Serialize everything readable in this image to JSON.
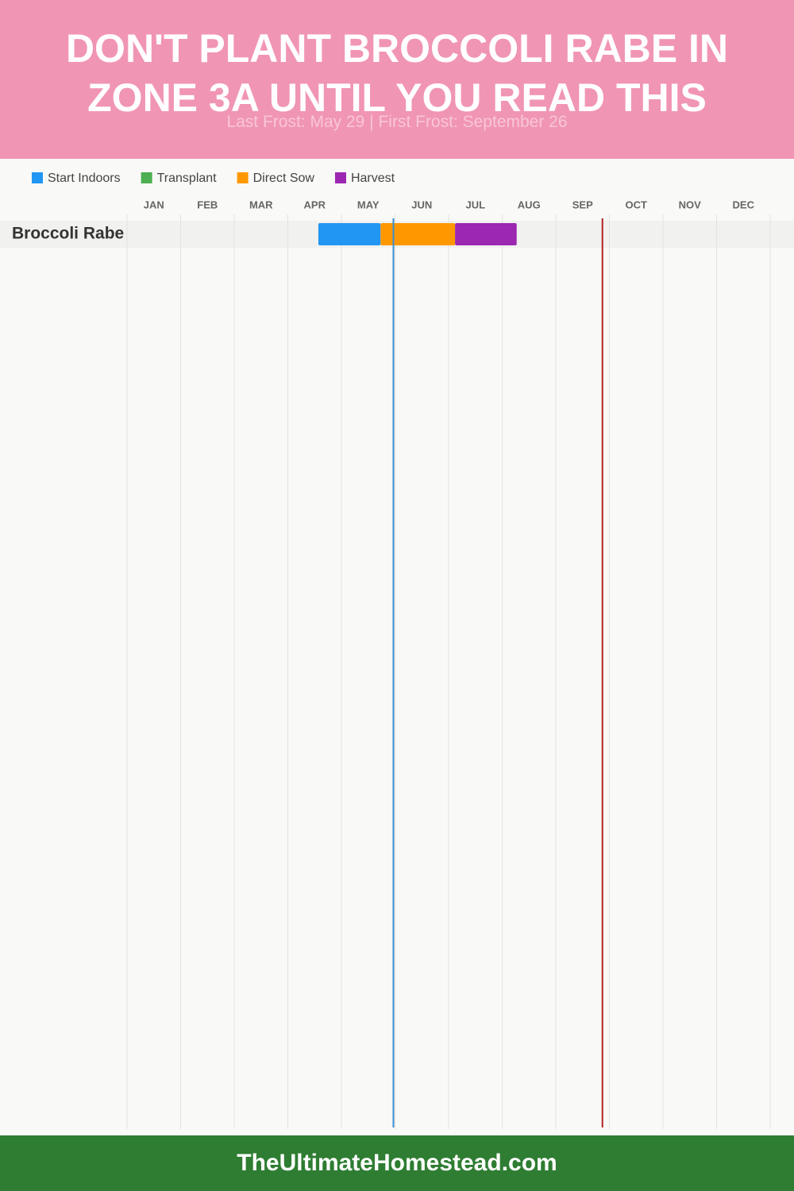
{
  "chart_data": {
    "type": "gantt",
    "title": "DON'T PLANT BROCCOLI RABE IN ZONE 3A UNTIL YOU READ THIS",
    "subtitle": "Last Frost: May 29 | First Frost: September 26",
    "footer": "TheUltimateHomestead.com",
    "categories": [
      "Broccoli Rabe"
    ],
    "xlim": [
      0,
      12
    ],
    "xticks": [
      {
        "value": 0.5,
        "label": "JAN"
      },
      {
        "value": 1.5,
        "label": "FEB"
      },
      {
        "value": 2.5,
        "label": "MAR"
      },
      {
        "value": 3.5,
        "label": "APR"
      },
      {
        "value": 4.5,
        "label": "MAY"
      },
      {
        "value": 5.5,
        "label": "JUN"
      },
      {
        "value": 6.5,
        "label": "JUL"
      },
      {
        "value": 7.5,
        "label": "AUG"
      },
      {
        "value": 8.5,
        "label": "SEP"
      },
      {
        "value": 9.5,
        "label": "OCT"
      },
      {
        "value": 10.5,
        "label": "NOV"
      },
      {
        "value": 11.5,
        "label": "DEC"
      }
    ],
    "series": [
      {
        "name": "Start Indoors",
        "color": "#2196f3",
        "values": [
          [
            3.57,
            4.73
          ]
        ]
      },
      {
        "name": "Transplant",
        "color": "#4caf50",
        "values": [
          null
        ]
      },
      {
        "name": "Direct Sow",
        "color": "#ff9800",
        "values": [
          [
            4.73,
            6.12
          ]
        ]
      },
      {
        "name": "Harvest",
        "color": "#9c27b0",
        "values": [
          [
            6.12,
            7.27
          ]
        ]
      }
    ],
    "reference_lines": [
      {
        "value": 4.97,
        "color": "#3a8fd0"
      },
      {
        "value": 8.87,
        "color": "#b22222"
      }
    ]
  }
}
